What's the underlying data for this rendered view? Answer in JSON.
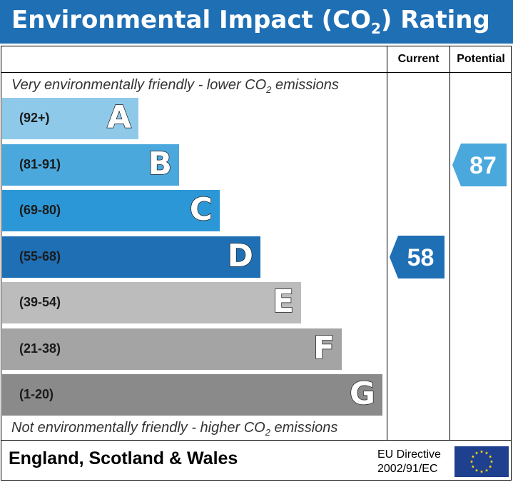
{
  "header": {
    "title": "Environmental Impact (CO",
    "title_sub": "2",
    "title_end": ") Rating"
  },
  "columns": {
    "current": "Current",
    "potential": "Potential"
  },
  "notes": {
    "top": {
      "pre": "Very environmentally friendly - lower CO",
      "sub": "2",
      "post": " emissions"
    },
    "bottom": {
      "pre": "Not environmentally friendly - higher CO",
      "sub": "2",
      "post": " emissions"
    }
  },
  "chart_data": {
    "type": "bar",
    "categories": [
      "A",
      "B",
      "C",
      "D",
      "E",
      "F",
      "G"
    ],
    "ranges": [
      "(92+)",
      "(81-91)",
      "(69-80)",
      "(55-68)",
      "(39-54)",
      "(21-38)",
      "(1-20)"
    ],
    "colors": [
      "#8ec9ea",
      "#4aa8dd",
      "#2c97d6",
      "#1f6fb5",
      "#bcbcbc",
      "#a4a4a4",
      "#8a8a8a"
    ],
    "current": {
      "value": 58,
      "band": "D",
      "color": "#1f6fb5"
    },
    "potential": {
      "value": 87,
      "band": "B",
      "color": "#4aa8dd"
    }
  },
  "footer": {
    "region": "England, Scotland & Wales",
    "directive_line1": "EU Directive",
    "directive_line2": "2002/91/EC",
    "flag_color": "#1f3f8f",
    "star_color": "#ffdd00"
  }
}
